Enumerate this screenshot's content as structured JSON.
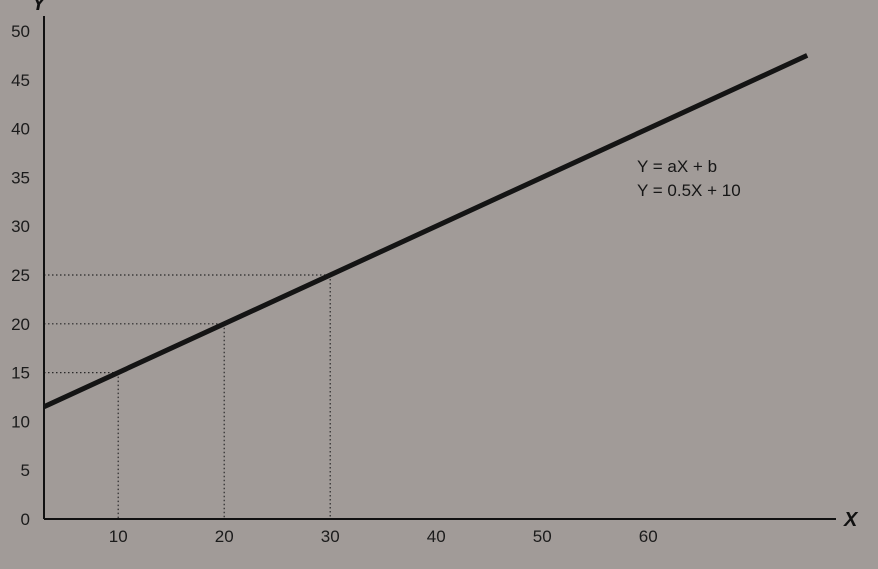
{
  "chart_data": {
    "type": "line",
    "xlabel": "X",
    "ylabel": "Y",
    "xlim": [
      3,
      75
    ],
    "ylim": [
      0,
      50
    ],
    "xticks": [
      10,
      20,
      30,
      40,
      50,
      60
    ],
    "yticks": [
      0,
      5,
      10,
      15,
      20,
      25,
      30,
      35,
      40,
      45,
      50
    ],
    "series": [
      {
        "x": [
          3,
          3.5,
          75
        ],
        "y": [
          11.5,
          11.75,
          47.5
        ]
      }
    ],
    "reference_points": [
      {
        "x": 10,
        "y": 15
      },
      {
        "x": 20,
        "y": 20
      },
      {
        "x": 30,
        "y": 25
      }
    ],
    "annotations": [
      "Y = aX + b",
      "Y = 0.5X + 10"
    ],
    "grid": false,
    "legend": "none"
  }
}
